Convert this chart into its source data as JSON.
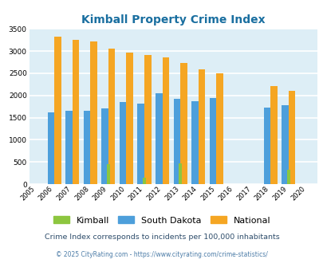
{
  "title": "Kimball Property Crime Index",
  "years": [
    2005,
    2006,
    2007,
    2008,
    2009,
    2010,
    2011,
    2012,
    2013,
    2014,
    2015,
    2016,
    2017,
    2018,
    2019,
    2020
  ],
  "kimball": [
    0,
    0,
    0,
    0,
    450,
    0,
    140,
    0,
    460,
    0,
    0,
    0,
    0,
    0,
    315,
    0
  ],
  "south_dakota": [
    0,
    1620,
    1645,
    1645,
    1710,
    1845,
    1820,
    2055,
    1930,
    1870,
    1950,
    0,
    0,
    1725,
    1775,
    0
  ],
  "national": [
    0,
    3330,
    3260,
    3220,
    3050,
    2960,
    2920,
    2860,
    2730,
    2595,
    2495,
    0,
    0,
    2205,
    2105,
    0
  ],
  "kimball_color": "#8dc63f",
  "sd_color": "#4d9fdb",
  "national_color": "#f5a623",
  "bg_color": "#ddeef6",
  "grid_color": "#ffffff",
  "ylim": [
    0,
    3500
  ],
  "yticks": [
    0,
    500,
    1000,
    1500,
    2000,
    2500,
    3000,
    3500
  ],
  "subtitle": "Crime Index corresponds to incidents per 100,000 inhabitants",
  "copyright": "© 2025 CityRating.com - https://www.cityrating.com/crime-statistics/",
  "title_color": "#1a6fa0",
  "subtitle_color": "#2e4d6b",
  "copyright_color": "#4d7da8"
}
